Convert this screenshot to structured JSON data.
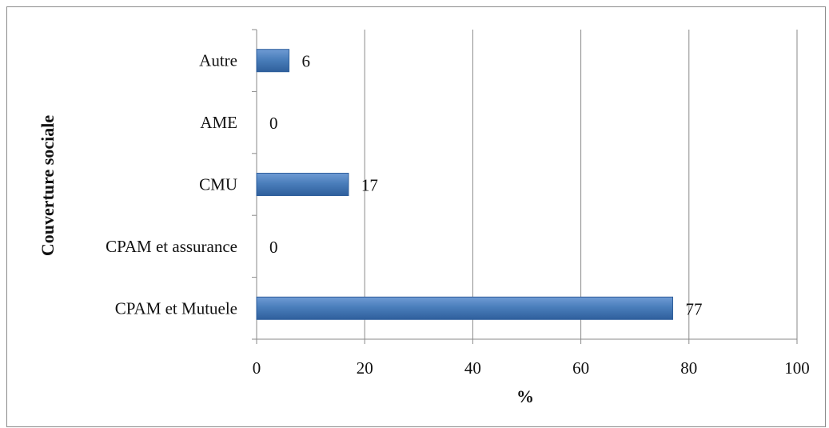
{
  "chart_data": {
    "type": "bar",
    "orientation": "horizontal",
    "categories": [
      "CPAM et Mutuele",
      "CPAM et assurance",
      "CMU",
      "AME",
      "Autre"
    ],
    "values": [
      77,
      0,
      17,
      0,
      6
    ],
    "data_labels": [
      "77",
      "0",
      "17",
      "0",
      "6"
    ],
    "xlabel": "%",
    "ylabel": "Couverture sociale",
    "xlim": [
      0,
      100
    ],
    "x_ticks": [
      "0",
      "20",
      "40",
      "60",
      "80",
      "100"
    ],
    "grid": "vertical major gridlines",
    "legend": "none",
    "bar_color": "#4a7ebb",
    "bar_color_dark": "#2f5f9c",
    "bar_color_light": "#6f9bd4"
  }
}
